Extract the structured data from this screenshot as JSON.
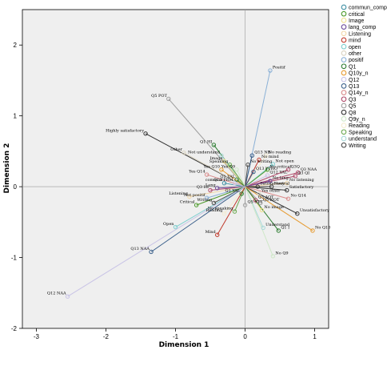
{
  "chart_data": {
    "type": "scatter",
    "title": "",
    "xlabel": "Dimension 1",
    "ylabel": "Dimension 2",
    "xlim": [
      -3.2,
      1.2
    ],
    "ylim": [
      -2.0,
      2.5
    ],
    "xticks": [
      -3,
      -2,
      -1,
      0,
      1
    ],
    "yticks": [
      -2,
      -1,
      0,
      1,
      2
    ],
    "legend": [
      {
        "name": "commun_comp",
        "color": "#3d8fa3"
      },
      {
        "name": "critical",
        "color": "#4c9a2a"
      },
      {
        "name": "Image",
        "color": "#f0e08c"
      },
      {
        "name": "lang_comp",
        "color": "#6b4a9a"
      },
      {
        "name": "Listening",
        "color": "#f2d8a8"
      },
      {
        "name": "mind",
        "color": "#c0392b"
      },
      {
        "name": "open",
        "color": "#7fcfcf"
      },
      {
        "name": "other",
        "color": "#d9d2c0"
      },
      {
        "name": "positif",
        "color": "#8ab0d6"
      },
      {
        "name": "Q1",
        "color": "#2e7d32"
      },
      {
        "name": "Q10y_n",
        "color": "#e69a2e"
      },
      {
        "name": "Q12",
        "color": "#c9c4e6"
      },
      {
        "name": "Q13",
        "color": "#3a5f8a"
      },
      {
        "name": "Q14y_n",
        "color": "#d98a8a"
      },
      {
        "name": "Q3",
        "color": "#b04a6a"
      },
      {
        "name": "Q5",
        "color": "#9e9e9e"
      },
      {
        "name": "Q8",
        "color": "#333333"
      },
      {
        "name": "Q9y_n",
        "color": "#cfe8c8"
      },
      {
        "name": "Reading",
        "color": "#f4ecd0"
      },
      {
        "name": "Speaking",
        "color": "#6aa84f"
      },
      {
        "name": "understand",
        "color": "#a8d8d8"
      },
      {
        "name": "Writing",
        "color": "#4d4d4d"
      }
    ],
    "points": [
      {
        "label": "Positif",
        "x": 0.36,
        "y": 1.64,
        "color": "#8ab0d6"
      },
      {
        "label": "Q5 POT",
        "x": -1.1,
        "y": 1.24,
        "color": "#9e9e9e"
      },
      {
        "label": "Highly satisfactory",
        "x": -1.43,
        "y": 0.75,
        "color": "#333333"
      },
      {
        "label": "Other",
        "x": -0.88,
        "y": 0.48,
        "color": "#d9d2c0"
      },
      {
        "label": "Q1 HI",
        "x": -0.45,
        "y": 0.59,
        "color": "#2e7d32"
      },
      {
        "label": "Not understand",
        "x": -0.34,
        "y": 0.44,
        "color": "#a8d8d8"
      },
      {
        "label": "Q13 NR",
        "x": 0.1,
        "y": 0.44,
        "color": "#3a5f8a"
      },
      {
        "label": "No reading",
        "x": 0.3,
        "y": 0.44,
        "color": "#f4ecd0"
      },
      {
        "label": "No mind",
        "x": 0.2,
        "y": 0.38,
        "color": "#c0392b"
      },
      {
        "label": "Not open",
        "x": 0.4,
        "y": 0.32,
        "color": "#7fcfcf"
      },
      {
        "label": "Image",
        "x": -0.3,
        "y": 0.36,
        "color": "#f0e08c"
      },
      {
        "label": "Speaking",
        "x": -0.22,
        "y": 0.31,
        "color": "#6aa84f"
      },
      {
        "label": "No writing",
        "x": 0.04,
        "y": 0.31,
        "color": "#4d4d4d"
      },
      {
        "label": "Yes Q10",
        "x": -0.34,
        "y": 0.24,
        "color": "#e69a2e"
      },
      {
        "label": "Yes Q9",
        "x": -0.12,
        "y": 0.24,
        "color": "#cfe8c8"
      },
      {
        "label": "No critical",
        "x": 0.32,
        "y": 0.24,
        "color": "#4c9a2a"
      },
      {
        "label": "Q3Q",
        "x": 0.62,
        "y": 0.24,
        "color": "#b04a6a"
      },
      {
        "label": "Q3 NAA",
        "x": 0.76,
        "y": 0.2,
        "color": "#b04a6a"
      },
      {
        "label": "Q3 QI",
        "x": 0.72,
        "y": 0.15,
        "color": "#b04a6a"
      },
      {
        "label": "Yes Q14",
        "x": -0.55,
        "y": 0.17,
        "color": "#d98a8a"
      },
      {
        "label": "Q13 YTHO",
        "x": 0.12,
        "y": 0.21,
        "color": "#3a5f8a"
      },
      {
        "label": "Q12 YAL",
        "x": 0.32,
        "y": 0.16,
        "color": "#c9c4e6"
      },
      {
        "label": "No lang",
        "x": 0.36,
        "y": 0.08,
        "color": "#6b4a9a"
      },
      {
        "label": "Q1 YAL",
        "x": -0.12,
        "y": 0.1,
        "color": "#2e7d32"
      },
      {
        "label": "commun",
        "x": -0.3,
        "y": 0.05,
        "color": "#3d8fa3"
      },
      {
        "label": "Q12 PRM",
        "x": -0.15,
        "y": 0.05,
        "color": "#c9c4e6"
      },
      {
        "label": "No listening",
        "x": 0.6,
        "y": 0.05,
        "color": "#f2d8a8"
      },
      {
        "label": "Satisfactory",
        "x": 0.18,
        "y": 0.0,
        "color": "#333333"
      },
      {
        "label": "Neutral",
        "x": 0.38,
        "y": 0.0,
        "color": "#333333"
      },
      {
        "label": "Satisfactory",
        "x": 0.6,
        "y": -0.05,
        "color": "#333333"
      },
      {
        "label": "Q3 HI",
        "x": -0.5,
        "y": -0.05,
        "color": "#b04a6a"
      },
      {
        "label": "Lang",
        "x": -0.4,
        "y": -0.02,
        "color": "#6b4a9a"
      },
      {
        "label": "Listening",
        "x": -0.8,
        "y": -0.14,
        "color": "#f2d8a8"
      },
      {
        "label": "Not positif",
        "x": -0.55,
        "y": -0.16,
        "color": "#8ab0d6"
      },
      {
        "label": "Critical",
        "x": -0.7,
        "y": -0.26,
        "color": "#4c9a2a"
      },
      {
        "label": "Writing",
        "x": -0.45,
        "y": -0.23,
        "color": "#4d4d4d"
      },
      {
        "label": "Reading",
        "x": -0.3,
        "y": -0.38,
        "color": "#f4ecd0"
      },
      {
        "label": "Q1 YAL",
        "x": -0.05,
        "y": -0.1,
        "color": "#2e7d32"
      },
      {
        "label": "Yes other",
        "x": 0.2,
        "y": -0.1,
        "color": "#d9d2c0"
      },
      {
        "label": "No Q14",
        "x": 0.62,
        "y": -0.17,
        "color": "#d98a8a"
      },
      {
        "label": "Q3 AQT",
        "x": 0.15,
        "y": -0.19,
        "color": "#b04a6a"
      },
      {
        "label": "Q5 NOT",
        "x": 0.22,
        "y": -0.23,
        "color": "#9e9e9e"
      },
      {
        "label": "No image",
        "x": 0.24,
        "y": -0.33,
        "color": "#f0e08c"
      },
      {
        "label": "Q5 STT",
        "x": 0.0,
        "y": -0.26,
        "color": "#9e9e9e"
      },
      {
        "label": "No speaking",
        "x": -0.15,
        "y": -0.35,
        "color": "#6aa84f"
      },
      {
        "label": "Unsatisfactory",
        "x": 0.75,
        "y": -0.38,
        "color": "#333333"
      },
      {
        "label": "Understand",
        "x": 0.26,
        "y": -0.58,
        "color": "#a8d8d8"
      },
      {
        "label": "Q1 I",
        "x": 0.48,
        "y": -0.62,
        "color": "#2e7d32"
      },
      {
        "label": "Mind",
        "x": -0.4,
        "y": -0.68,
        "color": "#c0392b"
      },
      {
        "label": "No Q10",
        "x": 0.97,
        "y": -0.62,
        "color": "#e69a2e"
      },
      {
        "label": "Open",
        "x": -1.0,
        "y": -0.57,
        "color": "#7fcfcf"
      },
      {
        "label": "No Q9",
        "x": 0.4,
        "y": -0.98,
        "color": "#cfe8c8"
      },
      {
        "label": "Q13 NAA",
        "x": -1.35,
        "y": -0.92,
        "color": "#3a5f8a"
      },
      {
        "label": "Q12 NAA",
        "x": -2.55,
        "y": -1.55,
        "color": "#c9c4e6"
      }
    ]
  }
}
